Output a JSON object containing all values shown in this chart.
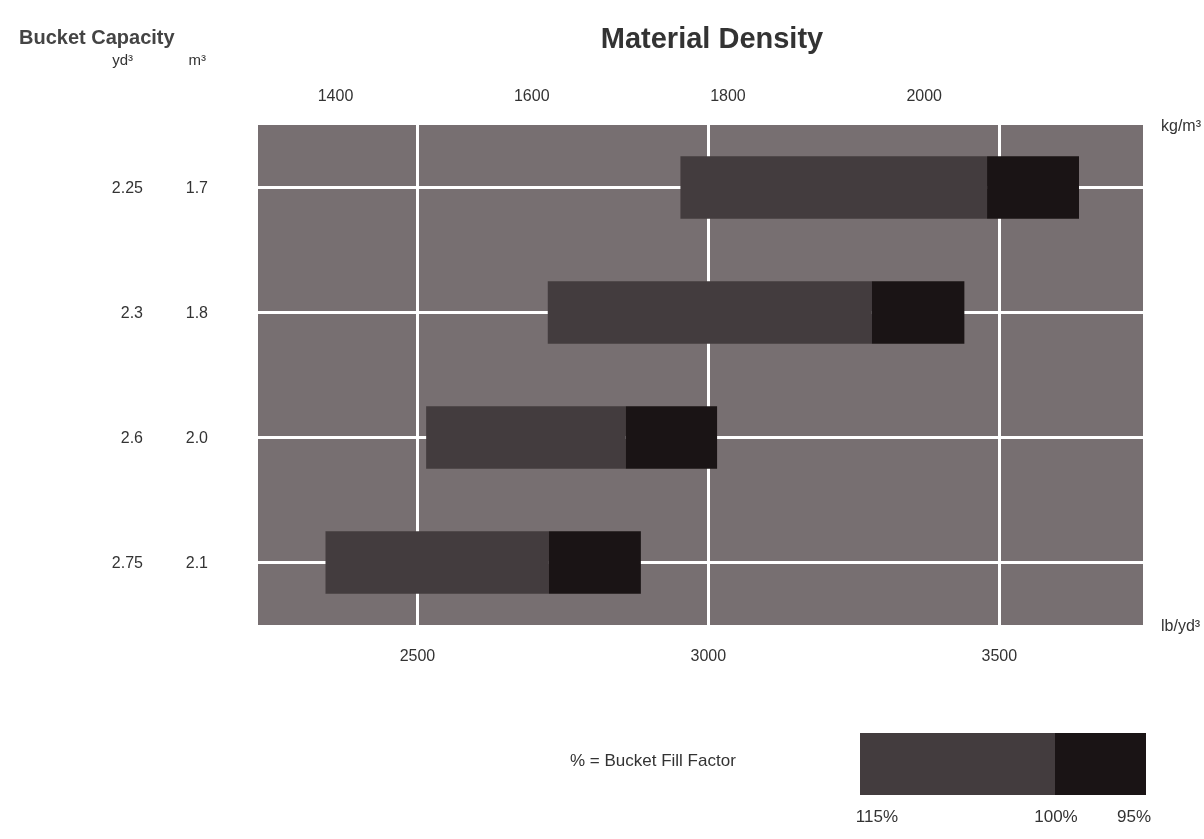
{
  "chart_data": {
    "type": "bar",
    "orientation": "horizontal",
    "title": "Material Density",
    "subtitle": "Bucket Capacity",
    "categories": [
      "2.25",
      "2.3",
      "2.6",
      "2.75"
    ],
    "y2_categories": [
      "1.7",
      "1.8",
      "2.0",
      "2.1"
    ],
    "ylabel": "yd³",
    "y2label": "m³",
    "xlabel": "lb/yd³",
    "x2label": "kg/m³",
    "series": [
      {
        "color": "#433c3e",
        "base": [
          2952,
          2724,
          2515,
          2342
        ],
        "values": [
          527,
          557,
          343,
          384
        ]
      },
      {
        "color": "#1a1415",
        "base": [
          3479,
          3281,
          2858,
          2726
        ],
        "values": [
          158,
          159,
          157,
          158
        ]
      }
    ],
    "xlim": [
      2226,
      3747
    ],
    "xticks": [
      2500,
      3000,
      3500
    ],
    "x2lim": [
      1321,
      2223
    ],
    "x2ticks": [
      1400,
      1600,
      1800,
      2000
    ],
    "grid": true,
    "annotations": [
      "% = Bucket Fill Factor",
      "115%",
      "100%",
      "95%"
    ]
  }
}
